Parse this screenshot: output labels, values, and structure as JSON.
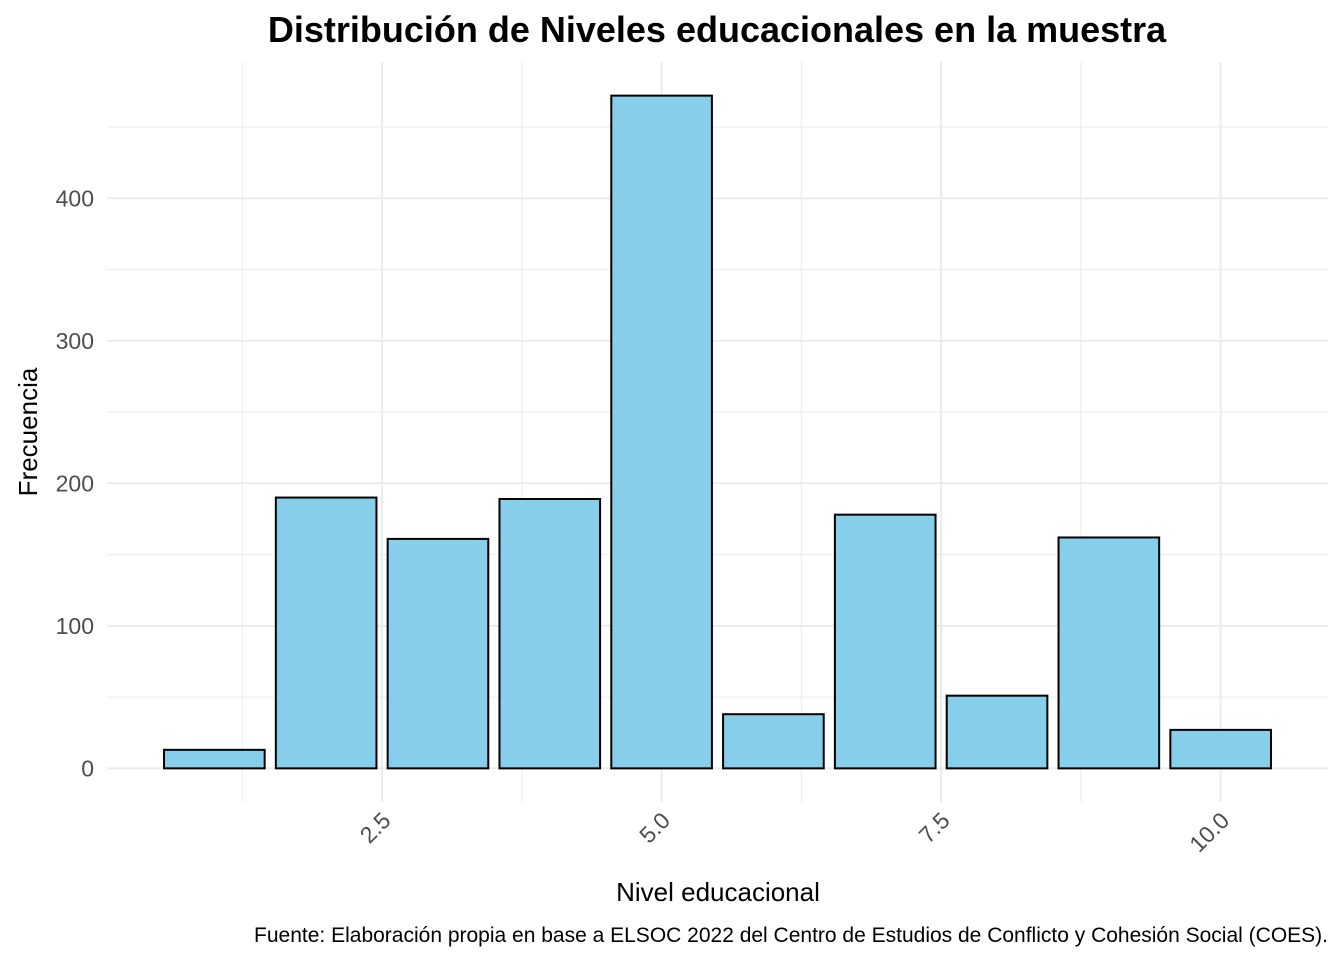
{
  "chart_data": {
    "type": "bar",
    "title": "Distribución de Niveles educacionales en la muestra",
    "xlabel": "Nivel educacional",
    "ylabel": "Frecuencia",
    "caption": "Fuente: Elaboración propia en base a ELSOC 2022 del Centro de Estudios de Conflicto y Cohesión Social (COES).",
    "x": [
      1,
      2,
      3,
      4,
      5,
      6,
      7,
      8,
      9,
      10
    ],
    "values": [
      13,
      190,
      161,
      189,
      472,
      38,
      178,
      51,
      162,
      27
    ],
    "xlim": [
      0.04,
      10.96
    ],
    "ylim": [
      -23.6,
      495.6
    ],
    "x_ticks": [
      2.5,
      5.0,
      7.5,
      10.0
    ],
    "x_tick_labels": [
      "2.5",
      "5.0",
      "7.5",
      "10.0"
    ],
    "y_ticks": [
      0,
      100,
      200,
      300,
      400
    ],
    "y_tick_labels": [
      "0",
      "100",
      "200",
      "300",
      "400"
    ],
    "x_minor_ticks": [
      1.25,
      3.75,
      6.25,
      8.75
    ],
    "y_minor_ticks": [
      50,
      150,
      250,
      350,
      450
    ],
    "bar_width": 0.9,
    "bar_fill": "#87ceeb",
    "bar_stroke": "#000000",
    "grid": true,
    "grid_color": "#ebebeb",
    "legend": "none"
  }
}
